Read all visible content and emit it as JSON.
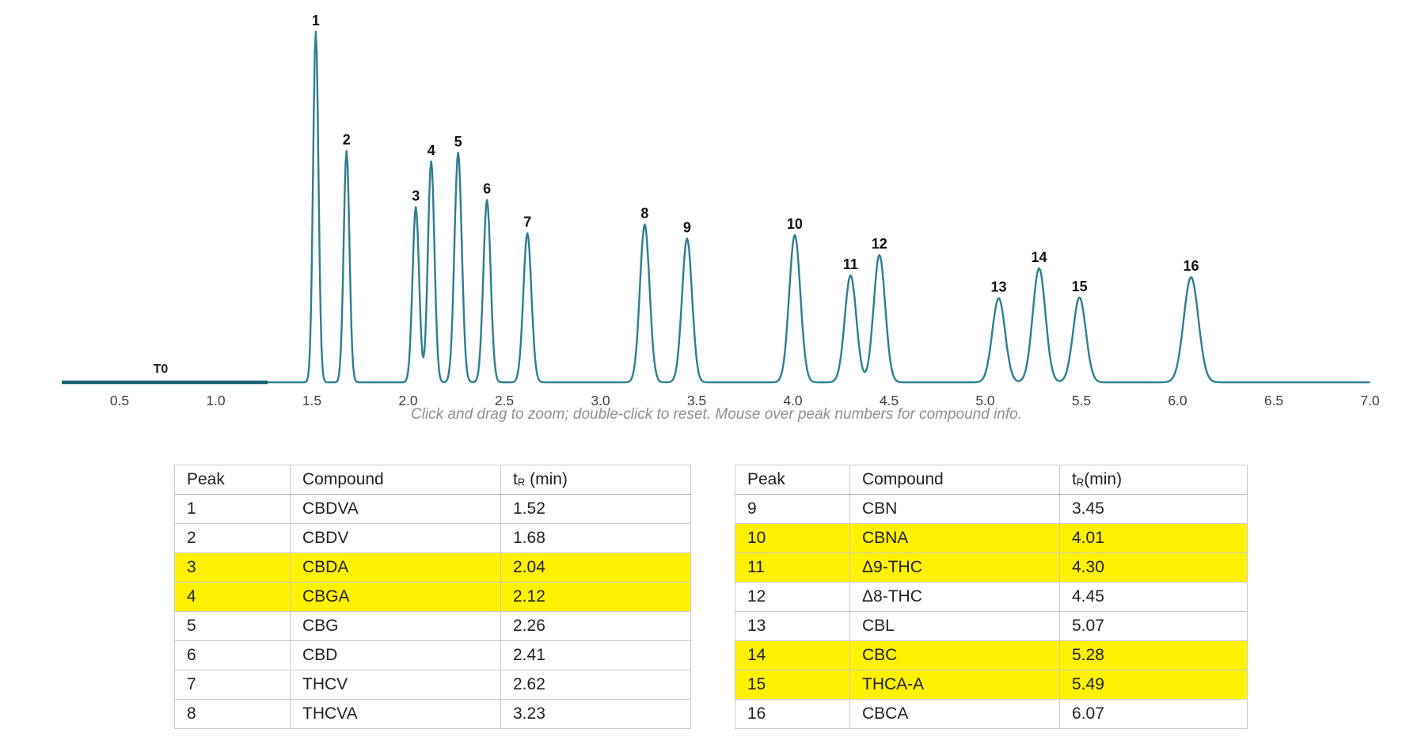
{
  "chart_data": {
    "type": "line",
    "title": "",
    "xlabel": "",
    "ylabel": "",
    "xlim": [
      0.2,
      7.0
    ],
    "x_ticks": [
      "0.5",
      "1.0",
      "1.5",
      "2.0",
      "2.5",
      "3.0",
      "3.5",
      "4.0",
      "4.5",
      "5.0",
      "5.5",
      "6.0",
      "6.5",
      "7.0"
    ],
    "grid": false,
    "legend": "none",
    "t0_label": "T0",
    "t0_span_min": [
      0.2,
      1.27
    ],
    "caption": "Click and drag to zoom; double-click to reset. Mouse over peak numbers for compound info.",
    "peaks": [
      {
        "n": "1",
        "compound": "CBDVA",
        "tr": 1.52,
        "rel_height": 1.0,
        "sigma": 0.014
      },
      {
        "n": "2",
        "compound": "CBDV",
        "tr": 1.68,
        "rel_height": 0.66,
        "sigma": 0.015
      },
      {
        "n": "3",
        "compound": "CBDA",
        "tr": 2.04,
        "rel_height": 0.5,
        "sigma": 0.017
      },
      {
        "n": "4",
        "compound": "CBGA",
        "tr": 2.12,
        "rel_height": 0.63,
        "sigma": 0.017
      },
      {
        "n": "5",
        "compound": "CBG",
        "tr": 2.26,
        "rel_height": 0.655,
        "sigma": 0.019
      },
      {
        "n": "6",
        "compound": "CBD",
        "tr": 2.41,
        "rel_height": 0.52,
        "sigma": 0.019
      },
      {
        "n": "7",
        "compound": "THCV",
        "tr": 2.62,
        "rel_height": 0.425,
        "sigma": 0.021
      },
      {
        "n": "8",
        "compound": "THCVA",
        "tr": 3.23,
        "rel_height": 0.45,
        "sigma": 0.025
      },
      {
        "n": "9",
        "compound": "CBN",
        "tr": 3.45,
        "rel_height": 0.41,
        "sigma": 0.026
      },
      {
        "n": "10",
        "compound": "CBNA",
        "tr": 4.01,
        "rel_height": 0.42,
        "sigma": 0.029
      },
      {
        "n": "11",
        "compound": "Δ9-THC",
        "tr": 4.3,
        "rel_height": 0.305,
        "sigma": 0.03
      },
      {
        "n": "12",
        "compound": "Δ8-THC",
        "tr": 4.45,
        "rel_height": 0.363,
        "sigma": 0.03
      },
      {
        "n": "13",
        "compound": "CBL",
        "tr": 5.07,
        "rel_height": 0.24,
        "sigma": 0.033
      },
      {
        "n": "14",
        "compound": "CBC",
        "tr": 5.28,
        "rel_height": 0.325,
        "sigma": 0.033
      },
      {
        "n": "15",
        "compound": "THCA-A",
        "tr": 5.49,
        "rel_height": 0.242,
        "sigma": 0.033
      },
      {
        "n": "16",
        "compound": "CBCA",
        "tr": 6.07,
        "rel_height": 0.3,
        "sigma": 0.038
      }
    ],
    "colors": {
      "trace": "#2d7e91",
      "t0_segment": "#186374",
      "peak_label": "#111111",
      "tick_label": "#3f3f3f",
      "caption": "#8f8f8f"
    }
  },
  "tables": {
    "highlight_color": "#fff200",
    "left": {
      "headers": {
        "peak": "Peak",
        "compound": "Compound",
        "tr_t": "t",
        "tr_sub": "R",
        "tr_rest": " (min)"
      },
      "rows": [
        {
          "peak": "1",
          "compound": "CBDVA",
          "tr": "1.52",
          "highlighted": false
        },
        {
          "peak": "2",
          "compound": "CBDV",
          "tr": "1.68",
          "highlighted": false
        },
        {
          "peak": "3",
          "compound": "CBDA",
          "tr": "2.04",
          "highlighted": true
        },
        {
          "peak": "4",
          "compound": "CBGA",
          "tr": "2.12",
          "highlighted": true
        },
        {
          "peak": "5",
          "compound": "CBG",
          "tr": "2.26",
          "highlighted": false
        },
        {
          "peak": "6",
          "compound": "CBD",
          "tr": "2.41",
          "highlighted": false
        },
        {
          "peak": "7",
          "compound": "THCV",
          "tr": "2.62",
          "highlighted": false
        },
        {
          "peak": "8",
          "compound": "THCVA",
          "tr": "3.23",
          "highlighted": false
        }
      ]
    },
    "right": {
      "headers": {
        "peak": "Peak",
        "compound": "Compound",
        "tr_t": "t",
        "tr_sub": "R",
        "tr_rest": "(min)"
      },
      "rows": [
        {
          "peak": "9",
          "compound": "CBN",
          "tr": "3.45",
          "highlighted": false
        },
        {
          "peak": "10",
          "compound": "CBNA",
          "tr": "4.01",
          "highlighted": true
        },
        {
          "peak": "11",
          "compound": "Δ9-THC",
          "tr": "4.30",
          "highlighted": true
        },
        {
          "peak": "12",
          "compound": "Δ8-THC",
          "tr": "4.45",
          "highlighted": false
        },
        {
          "peak": "13",
          "compound": "CBL",
          "tr": "5.07",
          "highlighted": false
        },
        {
          "peak": "14",
          "compound": "CBC",
          "tr": "5.28",
          "highlighted": true
        },
        {
          "peak": "15",
          "compound": "THCA-A",
          "tr": "5.49",
          "highlighted": true
        },
        {
          "peak": "16",
          "compound": "CBCA",
          "tr": "6.07",
          "highlighted": false
        }
      ]
    }
  }
}
